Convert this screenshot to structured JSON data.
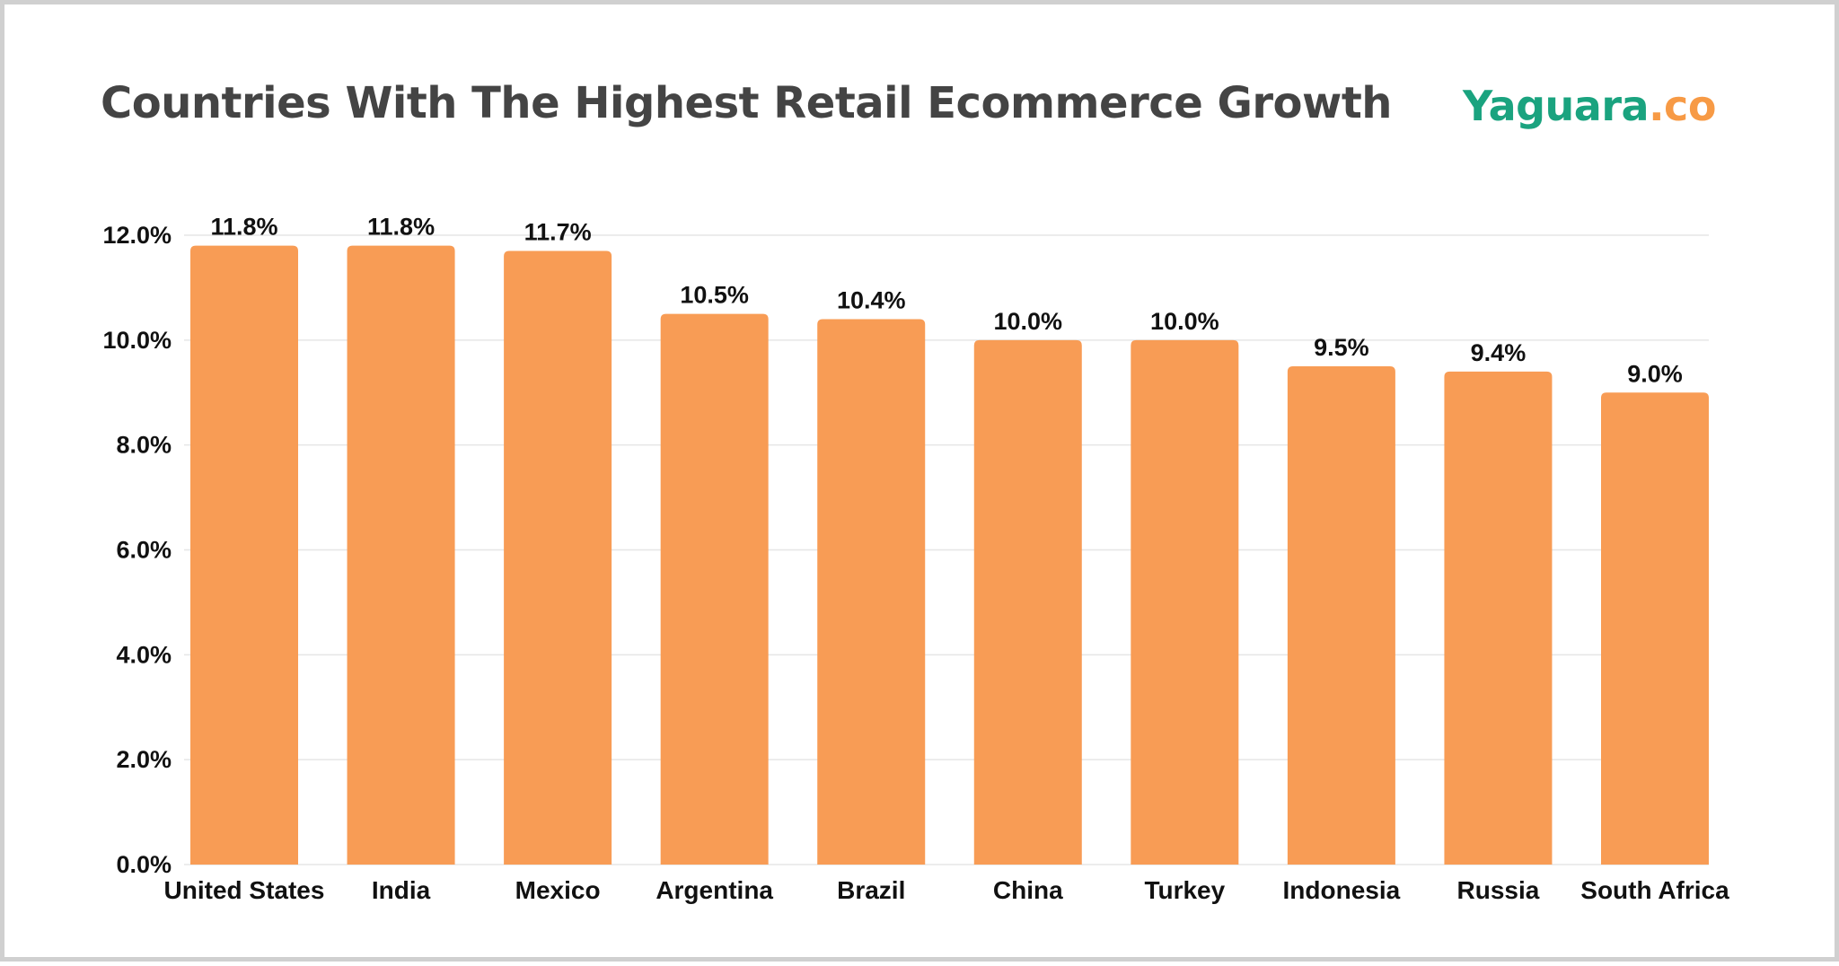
{
  "header": {
    "title": "Countries With The Highest Retail Ecommerce Growth",
    "logo_main": "Yaguara",
    "logo_suffix": ".co"
  },
  "colors": {
    "bar": "#f89c55",
    "logo_main": "#1aa37f",
    "logo_suffix": "#f79a45",
    "grid": "#e6e6e6",
    "title": "#444444"
  },
  "chart_data": {
    "type": "bar",
    "title": "Countries With The Highest Retail Ecommerce Growth",
    "xlabel": "",
    "ylabel": "",
    "categories": [
      "United States",
      "India",
      "Mexico",
      "Argentina",
      "Brazil",
      "China",
      "Turkey",
      "Indonesia",
      "Russia",
      "South Africa"
    ],
    "values": [
      11.8,
      11.8,
      11.7,
      10.5,
      10.4,
      10.0,
      10.0,
      9.5,
      9.4,
      9.0
    ],
    "value_labels": [
      "11.8%",
      "11.8%",
      "11.7%",
      "10.5%",
      "10.4%",
      "10.0%",
      "10.0%",
      "9.5%",
      "9.4%",
      "9.0%"
    ],
    "ylim": [
      0,
      12
    ],
    "yticks": [
      0,
      2,
      4,
      6,
      8,
      10,
      12
    ],
    "ytick_labels": [
      "0.0%",
      "2.0%",
      "4.0%",
      "6.0%",
      "8.0%",
      "10.0%",
      "12.0%"
    ],
    "grid": true,
    "legend": "none"
  }
}
